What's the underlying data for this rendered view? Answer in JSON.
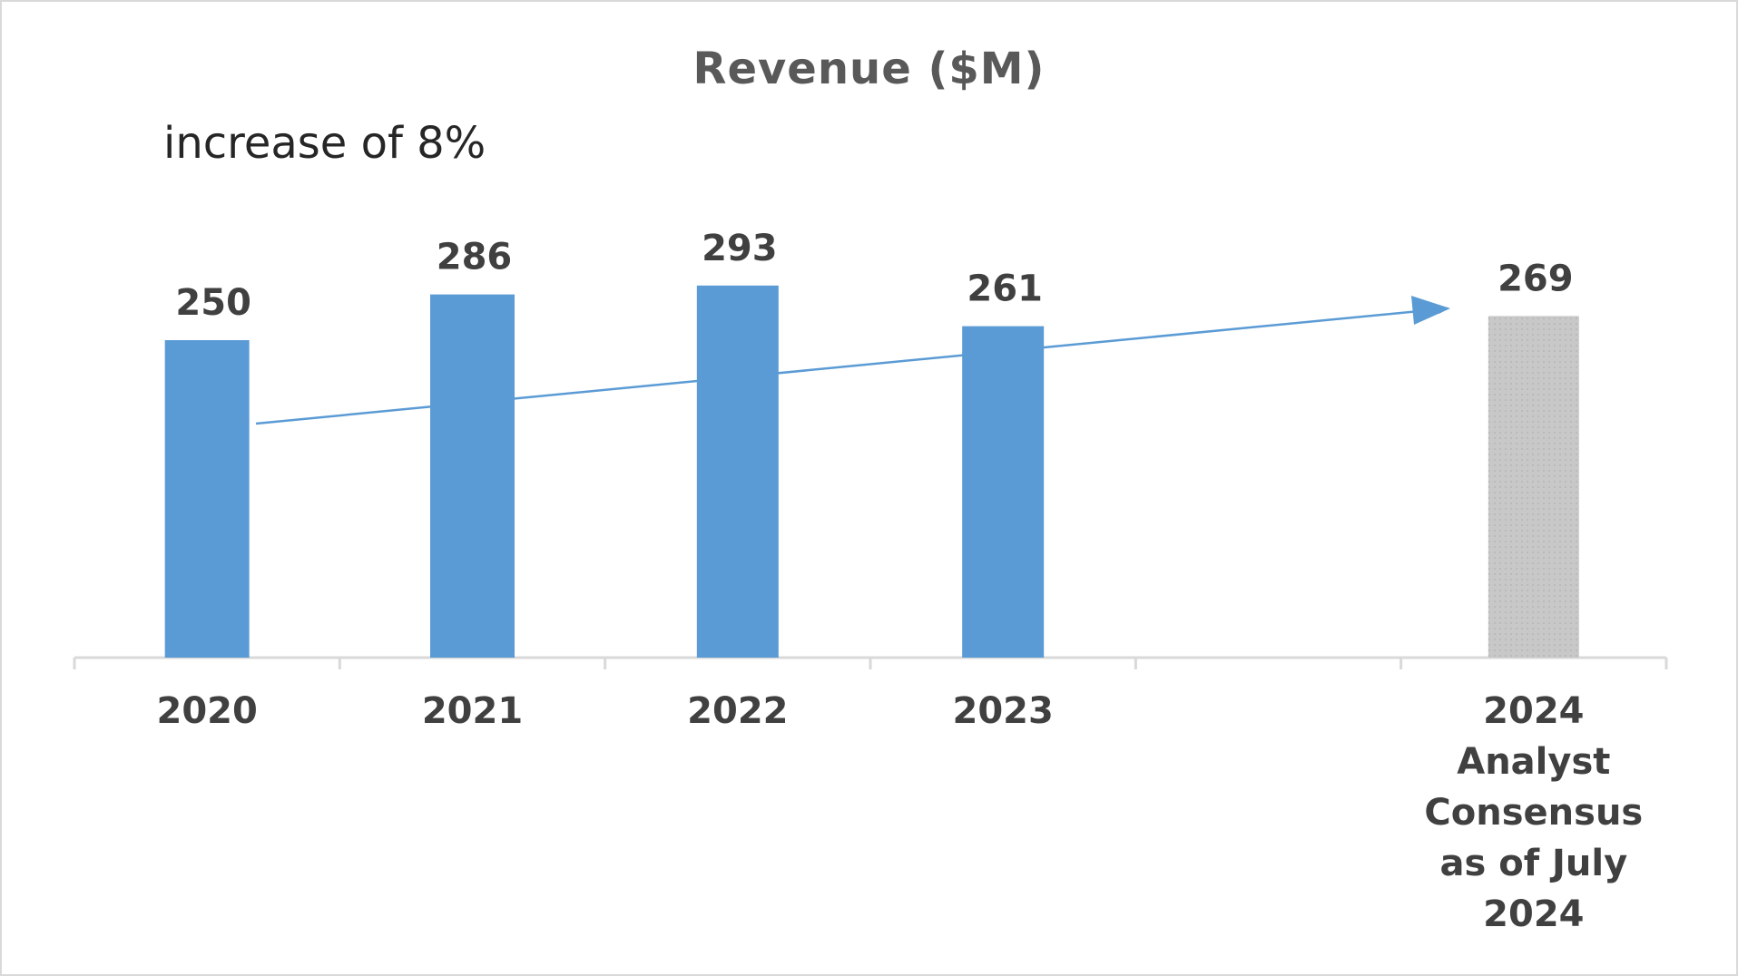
{
  "chart_data": {
    "type": "bar",
    "title": "Revenue ($M)",
    "annotation": "increase of 8%",
    "categories": [
      [
        "2020"
      ],
      [
        "2021"
      ],
      [
        "2022"
      ],
      [
        "2023"
      ],
      [
        ""
      ],
      [
        "2024",
        "Analyst",
        "Consensus",
        "as of July",
        "2024"
      ]
    ],
    "values": [
      250,
      286,
      293,
      261,
      null,
      269
    ],
    "data_labels": [
      "250",
      "286",
      "293",
      "261",
      "",
      "269"
    ],
    "ylim": [
      0,
      320
    ],
    "grid": false,
    "legend": "none",
    "colors": {
      "actual": "#5b9bd5",
      "forecast": "#c8c8c8",
      "trend_arrow": "#5b9bd5",
      "axis": "#d9d9d9"
    },
    "forecast_index": 5
  }
}
